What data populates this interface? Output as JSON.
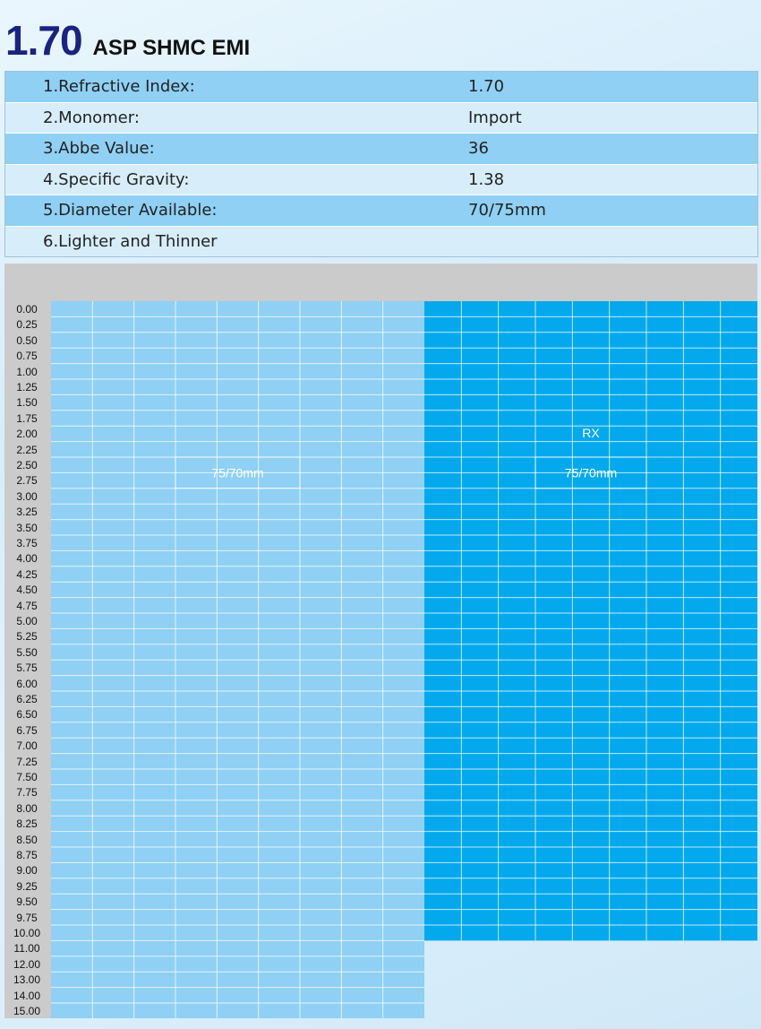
{
  "header": {
    "index": "1.70",
    "name": "ASP SHMC EMI"
  },
  "specs": [
    {
      "label": "1.Refractive Index:",
      "value": "1.70"
    },
    {
      "label": "2.Monomer:",
      "value": "Import"
    },
    {
      "label": "3.Abbe Value:",
      "value": "36"
    },
    {
      "label": "4.Specific Gravity:",
      "value": "1.38"
    },
    {
      "label": "5.Diameter Available:",
      "value": "70/75mm"
    },
    {
      "label": "6.Lighter and Thinner",
      "value": ""
    }
  ],
  "range_chart": {
    "rows": [
      "0.00",
      "0.25",
      "0.50",
      "0.75",
      "1.00",
      "1.25",
      "1.50",
      "1.75",
      "2.00",
      "2.25",
      "2.50",
      "2.75",
      "3.00",
      "3.25",
      "3.50",
      "3.75",
      "4.00",
      "4.25",
      "4.50",
      "4.75",
      "5.00",
      "5.25",
      "5.50",
      "5.75",
      "6.00",
      "6.25",
      "6.50",
      "6.75",
      "7.00",
      "7.25",
      "7.50",
      "7.75",
      "8.00",
      "8.25",
      "8.50",
      "8.75",
      "9.00",
      "9.25",
      "9.50",
      "9.75",
      "10.00",
      "11.00",
      "12.00",
      "13.00",
      "14.00",
      "15.00"
    ],
    "stock": {
      "label": "75/70mm",
      "max_row": "15.00",
      "color": "#8fd0f4"
    },
    "rx": {
      "title": "RX",
      "label": "75/70mm",
      "max_row": "10.00",
      "color": "#03a9ec"
    },
    "header_color": "#cbcbcb"
  }
}
